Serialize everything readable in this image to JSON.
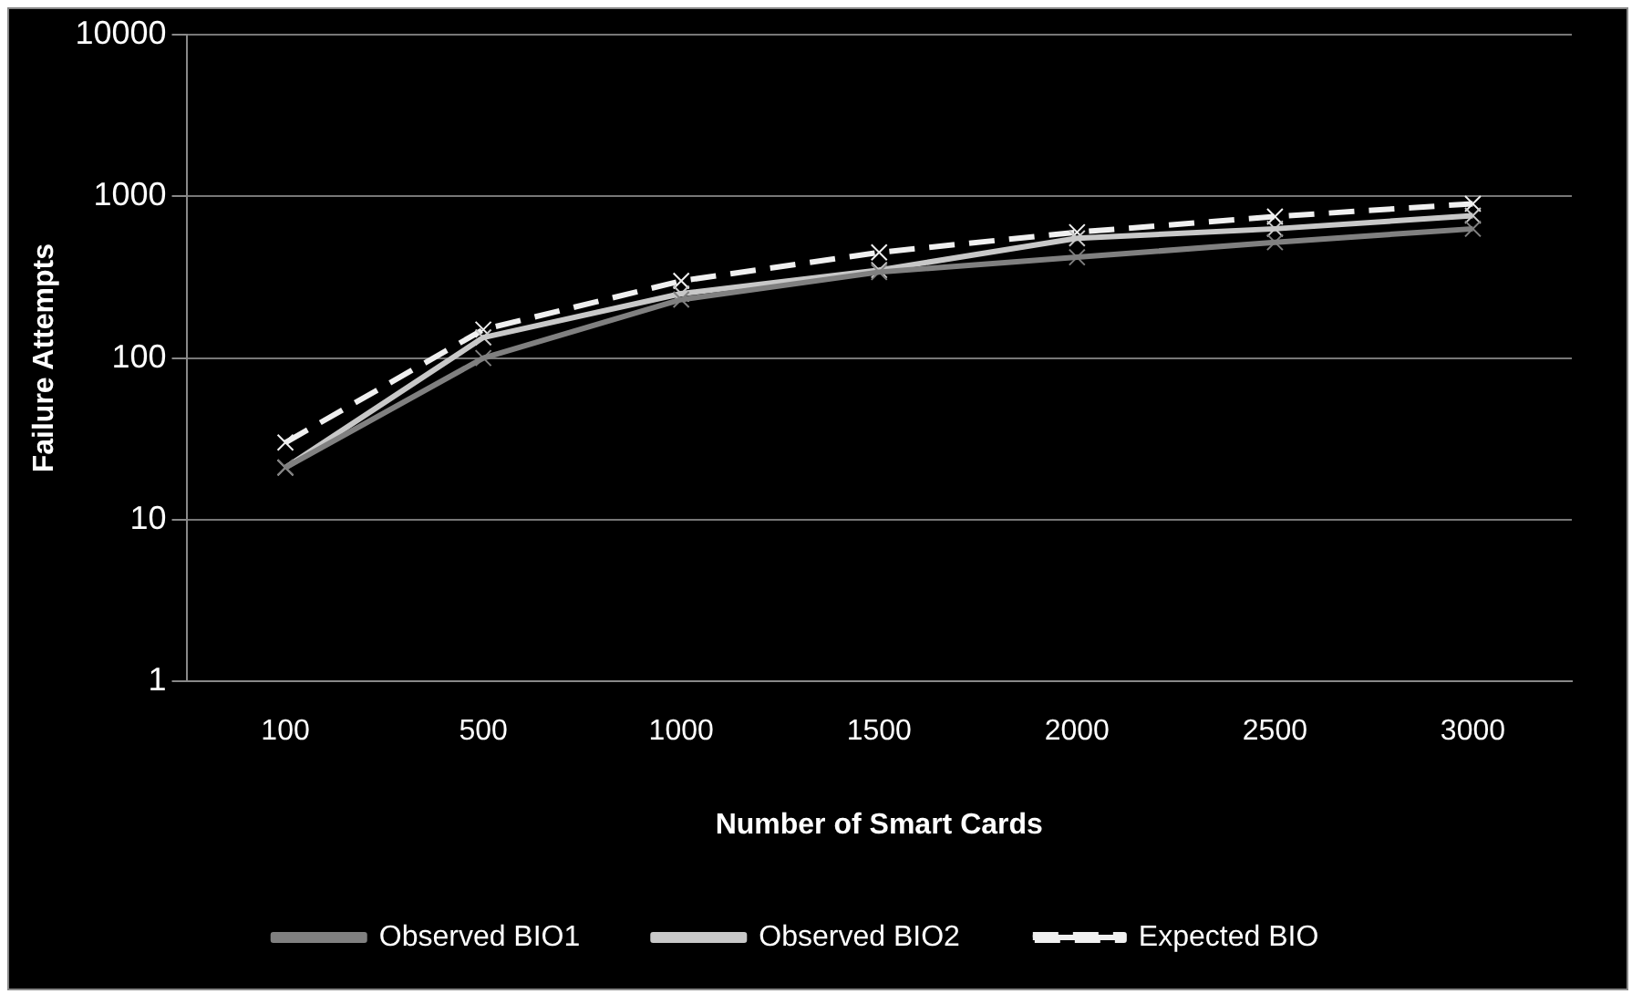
{
  "chart_data": {
    "type": "line",
    "xlabel": "Number of Smart Cards",
    "ylabel": "Failure Attempts",
    "categories": [
      "100",
      "500",
      "1000",
      "1500",
      "2000",
      "2500",
      "3000"
    ],
    "series": [
      {
        "name": "Observed BIO1",
        "color": "#808080",
        "values": [
          21,
          100,
          230,
          340,
          420,
          520,
          630
        ]
      },
      {
        "name": "Observed BIO2",
        "color": "#c8c8c8",
        "values": [
          21,
          134,
          250,
          350,
          550,
          630,
          760
        ]
      },
      {
        "name": "Expected BIO",
        "color": "#f0f0f0",
        "values": [
          30,
          150,
          300,
          450,
          600,
          750,
          900
        ],
        "line_style": "dashed"
      }
    ],
    "log": "y",
    "ylim": [
      1,
      10000
    ],
    "yticks": [
      1,
      10,
      100,
      1000,
      10000
    ],
    "grid": "y",
    "legend": "bottom",
    "marker": "cross"
  }
}
